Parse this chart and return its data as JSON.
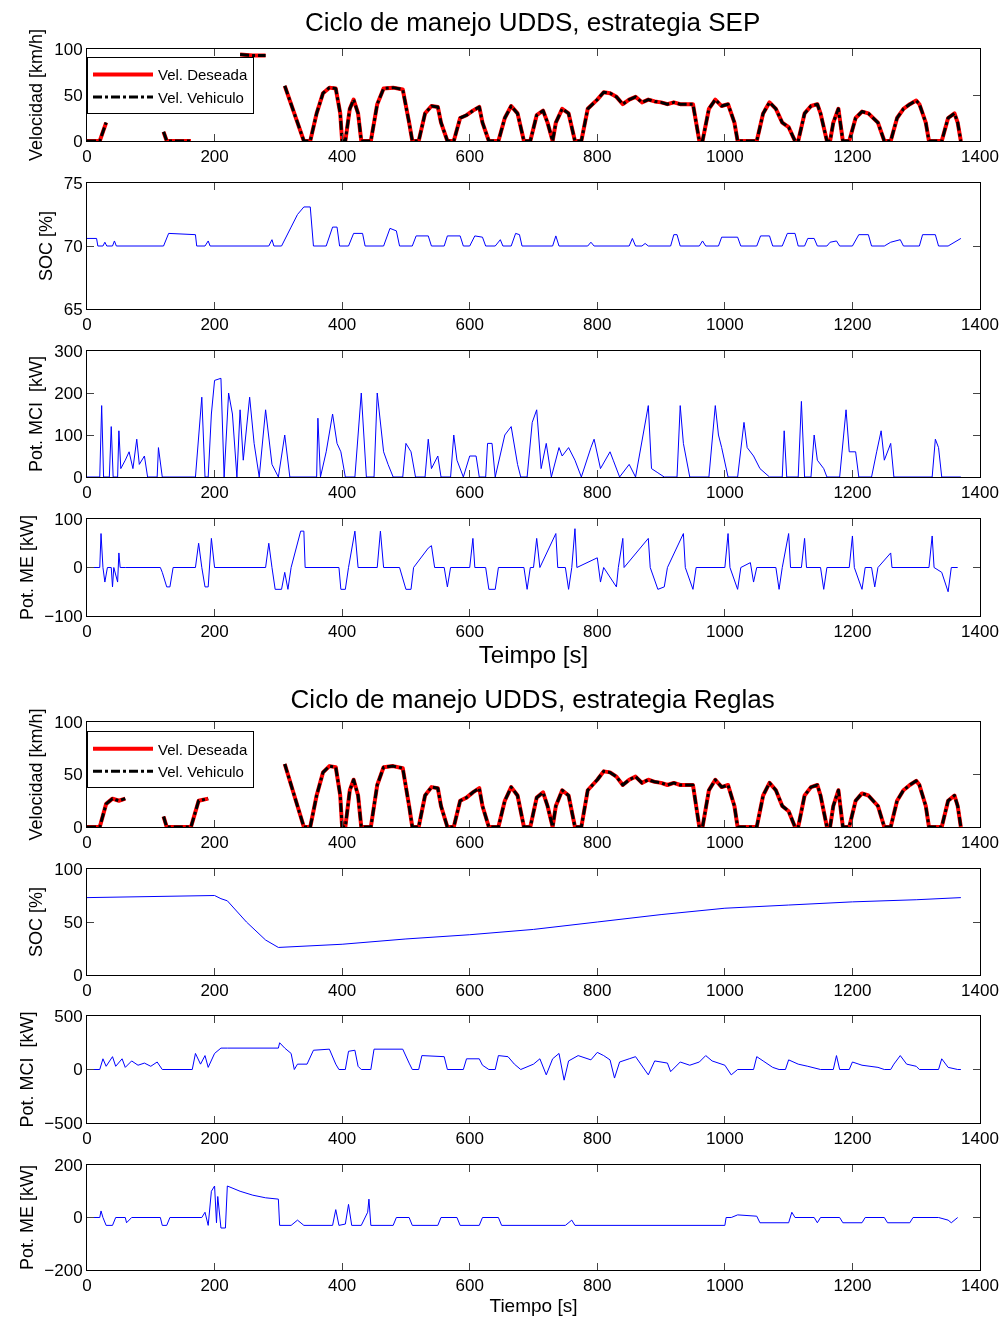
{
  "chart_data": [
    {
      "type": "line",
      "title": "Ciclo de manejo UDDS, estrategia SEP",
      "ylabel": "Velocidad [km/h]",
      "legend": "top left",
      "xlim": [
        0,
        1400
      ],
      "xticks": [
        0,
        200,
        400,
        600,
        800,
        1000,
        1200,
        1400
      ],
      "ylim": [
        0,
        100
      ],
      "yticks": [
        0,
        50,
        100
      ],
      "x": [
        0,
        20,
        30,
        40,
        50,
        60,
        70,
        80,
        90,
        100,
        110,
        120,
        125,
        163,
        175,
        190,
        200,
        210,
        220,
        240,
        260,
        280,
        300,
        310,
        320,
        330,
        340,
        350,
        360,
        370,
        380,
        390,
        397,
        400,
        405,
        412,
        418,
        425,
        430,
        445,
        455,
        465,
        480,
        495,
        505,
        510,
        520,
        530,
        540,
        550,
        555,
        565,
        575,
        585,
        595,
        605,
        615,
        620,
        630,
        645,
        655,
        665,
        675,
        685,
        695,
        705,
        715,
        722,
        730,
        735,
        745,
        755,
        765,
        775,
        785,
        800,
        810,
        820,
        830,
        840,
        850,
        860,
        870,
        880,
        890,
        900,
        910,
        920,
        930,
        950,
        960,
        965,
        975,
        985,
        995,
        1005,
        1015,
        1020,
        1050,
        1060,
        1070,
        1080,
        1090,
        1100,
        1110,
        1115,
        1125,
        1135,
        1145,
        1150,
        1160,
        1165,
        1170,
        1178,
        1185,
        1195,
        1205,
        1215,
        1225,
        1240,
        1250,
        1260,
        1270,
        1280,
        1290,
        1300,
        1305,
        1315,
        1320,
        1340,
        1350,
        1360,
        1365,
        1370
      ],
      "series": [
        {
          "name": "Vel. Deseada",
          "color": "#ff0000",
          "line_style": "solid",
          "values": [
            0,
            0,
            20,
            null,
            null,
            null,
            null,
            null,
            null,
            null,
            null,
            10,
            0,
            0,
            null,
            null,
            null,
            null,
            null,
            94,
            93,
            93,
            null,
            60,
            40,
            20,
            0,
            0,
            30,
            52,
            58,
            57,
            30,
            0,
            0,
            35,
            45,
            30,
            0,
            0,
            40,
            57,
            58,
            56,
            20,
            0,
            0,
            30,
            38,
            37,
            20,
            0,
            0,
            25,
            28,
            33,
            37,
            20,
            0,
            0,
            25,
            38,
            30,
            0,
            0,
            28,
            33,
            20,
            0,
            20,
            35,
            30,
            0,
            0,
            35,
            45,
            53,
            52,
            48,
            40,
            45,
            48,
            42,
            45,
            43,
            42,
            40,
            42,
            40,
            40,
            0,
            0,
            35,
            45,
            38,
            40,
            20,
            0,
            0,
            30,
            42,
            35,
            20,
            15,
            0,
            0,
            30,
            38,
            40,
            30,
            0,
            0,
            20,
            35,
            0,
            0,
            25,
            32,
            30,
            20,
            0,
            0,
            25,
            35,
            40,
            44,
            40,
            20,
            0,
            0,
            25,
            30,
            20,
            0
          ]
        },
        {
          "name": "Vel. Vehiculo",
          "color": "#000000",
          "line_style": "dashed",
          "values": [
            0,
            0,
            20,
            null,
            null,
            null,
            null,
            null,
            null,
            null,
            null,
            10,
            0,
            0,
            null,
            null,
            null,
            null,
            null,
            94,
            93,
            93,
            null,
            60,
            40,
            20,
            0,
            0,
            30,
            52,
            58,
            57,
            30,
            0,
            0,
            35,
            45,
            30,
            0,
            0,
            40,
            57,
            58,
            56,
            20,
            0,
            0,
            30,
            38,
            37,
            20,
            0,
            0,
            25,
            28,
            33,
            37,
            20,
            0,
            0,
            25,
            38,
            30,
            0,
            0,
            28,
            33,
            20,
            0,
            20,
            35,
            30,
            0,
            0,
            35,
            45,
            53,
            52,
            48,
            40,
            45,
            48,
            42,
            45,
            43,
            42,
            40,
            42,
            40,
            40,
            0,
            0,
            35,
            45,
            38,
            40,
            20,
            0,
            0,
            30,
            42,
            35,
            20,
            15,
            0,
            0,
            30,
            38,
            40,
            30,
            0,
            0,
            20,
            35,
            0,
            0,
            25,
            32,
            30,
            20,
            0,
            0,
            25,
            35,
            40,
            44,
            40,
            20,
            0,
            0,
            25,
            30,
            20,
            0
          ]
        }
      ]
    },
    {
      "type": "line",
      "ylabel": "SOC [%]",
      "xlim": [
        0,
        1400
      ],
      "xticks": [
        0,
        200,
        400,
        600,
        800,
        1000,
        1200,
        1400
      ],
      "ylim": [
        65,
        75
      ],
      "yticks": [
        65,
        70,
        75
      ],
      "x": [
        0,
        15,
        17,
        25,
        28,
        31,
        40,
        43,
        46,
        120,
        128,
        170,
        172,
        185,
        190,
        193,
        285,
        290,
        293,
        305,
        320,
        330,
        340,
        350,
        355,
        375,
        385,
        392,
        396,
        410,
        418,
        432,
        436,
        465,
        475,
        485,
        490,
        510,
        516,
        535,
        540,
        560,
        565,
        585,
        590,
        600,
        608,
        620,
        625,
        640,
        648,
        652,
        665,
        672,
        678,
        682,
        730,
        735,
        740,
        785,
        790,
        795,
        850,
        855,
        860,
        870,
        875,
        880,
        915,
        920,
        925,
        930,
        960,
        965,
        970,
        990,
        995,
        1020,
        1025,
        1050,
        1056,
        1070,
        1075,
        1090,
        1098,
        1110,
        1115,
        1125,
        1130,
        1140,
        1145,
        1160,
        1165,
        1175,
        1180,
        1200,
        1210,
        1225,
        1230,
        1250,
        1260,
        1275,
        1280,
        1305,
        1310,
        1330,
        1335,
        1350,
        1370
      ],
      "series": [
        {
          "color": "#0000ff",
          "line_style": "solid",
          "values": [
            70.6,
            70.6,
            70,
            70,
            70.3,
            70,
            70,
            70.4,
            70,
            70,
            71,
            70.9,
            70,
            70,
            70.4,
            70,
            70,
            70.5,
            70,
            70,
            71.5,
            72.5,
            73.1,
            73.1,
            70,
            70,
            71.5,
            71.5,
            70,
            70,
            71,
            71,
            70,
            70,
            71.4,
            71.2,
            70,
            70,
            70.8,
            70.8,
            70,
            70,
            70.8,
            70.8,
            70,
            70,
            70.8,
            70.7,
            70,
            70,
            70.5,
            70,
            70,
            71,
            70.9,
            70,
            70,
            70.8,
            70,
            70,
            70.3,
            70,
            70,
            70.6,
            70,
            70,
            70.2,
            70,
            70,
            70.9,
            70.9,
            70,
            70,
            70.4,
            70,
            70,
            70.7,
            70.7,
            70,
            70,
            70.8,
            70.8,
            70,
            70,
            71,
            71,
            70,
            70,
            70.6,
            70.6,
            70,
            70,
            70.3,
            70.4,
            70,
            70,
            70.9,
            70.9,
            70,
            70,
            70.3,
            70.5,
            70,
            70,
            70.9,
            70.9,
            70,
            70,
            70.6
          ]
        }
      ]
    },
    {
      "type": "line",
      "ylabel": "Pot. MCI  [kW]",
      "xlim": [
        0,
        1400
      ],
      "xticks": [
        0,
        200,
        400,
        600,
        800,
        1000,
        1200,
        1400
      ],
      "ylim": [
        0,
        300
      ],
      "yticks": [
        0,
        100,
        200,
        300
      ],
      "x": [
        0,
        20,
        23,
        26,
        35,
        38,
        41,
        48,
        50,
        53,
        60,
        66,
        72,
        78,
        82,
        90,
        95,
        110,
        112,
        118,
        130,
        170,
        180,
        185,
        190,
        195,
        200,
        210,
        215,
        222,
        228,
        235,
        240,
        245,
        255,
        262,
        270,
        280,
        290,
        300,
        310,
        318,
        360,
        362,
        366,
        375,
        385,
        392,
        398,
        405,
        420,
        430,
        438,
        450,
        455,
        465,
        472,
        480,
        495,
        500,
        508,
        515,
        530,
        535,
        540,
        550,
        555,
        570,
        575,
        580,
        590,
        600,
        610,
        615,
        625,
        628,
        635,
        640,
        655,
        665,
        675,
        680,
        690,
        698,
        705,
        712,
        720,
        728,
        740,
        745,
        755,
        765,
        775,
        790,
        795,
        805,
        820,
        825,
        835,
        850,
        860,
        880,
        885,
        895,
        905,
        925,
        930,
        935,
        945,
        975,
        985,
        990,
        995,
        1005,
        1020,
        1030,
        1035,
        1045,
        1055,
        1070,
        1090,
        1093,
        1097,
        1115,
        1120,
        1125,
        1135,
        1140,
        1145,
        1155,
        1160,
        1180,
        1190,
        1195,
        1205,
        1210,
        1230,
        1238,
        1245,
        1250,
        1260,
        1265,
        1325,
        1330,
        1335,
        1340,
        1370
      ],
      "series": [
        {
          "color": "#0000ff",
          "line_style": "solid",
          "values": [
            0,
            0,
            170,
            0,
            0,
            120,
            0,
            0,
            110,
            20,
            40,
            60,
            20,
            90,
            30,
            50,
            0,
            0,
            70,
            0,
            0,
            0,
            190,
            0,
            0,
            150,
            230,
            235,
            0,
            200,
            150,
            0,
            160,
            40,
            190,
            80,
            0,
            160,
            30,
            0,
            100,
            0,
            0,
            140,
            0,
            60,
            150,
            80,
            60,
            0,
            0,
            200,
            0,
            0,
            200,
            60,
            30,
            0,
            0,
            80,
            60,
            0,
            0,
            90,
            20,
            50,
            0,
            0,
            100,
            40,
            0,
            50,
            50,
            0,
            0,
            80,
            80,
            0,
            100,
            120,
            30,
            0,
            0,
            130,
            160,
            20,
            80,
            0,
            70,
            50,
            70,
            40,
            0,
            70,
            90,
            20,
            60,
            40,
            0,
            30,
            0,
            170,
            20,
            10,
            0,
            0,
            170,
            80,
            0,
            0,
            170,
            100,
            70,
            0,
            0,
            130,
            70,
            50,
            20,
            0,
            0,
            110,
            0,
            0,
            180,
            0,
            0,
            100,
            40,
            20,
            0,
            0,
            160,
            60,
            60,
            0,
            0,
            60,
            110,
            40,
            80,
            0,
            0,
            90,
            70,
            0,
            0
          ]
        }
      ]
    },
    {
      "type": "line",
      "xlabel": "Teimpo [s]",
      "ylabel": "Pot. ME [kW]",
      "xlim": [
        0,
        1400
      ],
      "xticks": [
        0,
        200,
        400,
        600,
        800,
        1000,
        1200,
        1400
      ],
      "ylim": [
        -100,
        100
      ],
      "yticks": [
        -100,
        0,
        100
      ],
      "x": [
        0,
        20,
        22,
        25,
        28,
        32,
        38,
        40,
        42,
        48,
        50,
        52,
        60,
        115,
        118,
        125,
        130,
        135,
        170,
        175,
        180,
        185,
        190,
        195,
        200,
        280,
        285,
        290,
        295,
        305,
        310,
        315,
        320,
        335,
        340,
        342,
        395,
        398,
        405,
        410,
        420,
        425,
        455,
        460,
        465,
        490,
        500,
        508,
        512,
        535,
        540,
        545,
        560,
        565,
        570,
        600,
        605,
        608,
        625,
        630,
        640,
        645,
        685,
        690,
        695,
        700,
        705,
        710,
        735,
        738,
        750,
        755,
        760,
        765,
        768,
        800,
        805,
        810,
        830,
        833,
        840,
        842,
        880,
        883,
        895,
        905,
        910,
        935,
        938,
        950,
        955,
        1000,
        1005,
        1008,
        1020,
        1025,
        1040,
        1045,
        1050,
        1080,
        1085,
        1090,
        1100,
        1103,
        1120,
        1125,
        1128,
        1150,
        1155,
        1160,
        1195,
        1200,
        1203,
        1215,
        1220,
        1230,
        1235,
        1240,
        1260,
        1262,
        1320,
        1325,
        1328,
        1340,
        1350,
        1355,
        1365
      ],
      "series": [
        {
          "color": "#0000ff",
          "line_style": "solid",
          "values": [
            0,
            0,
            70,
            0,
            -30,
            0,
            0,
            -40,
            0,
            -30,
            30,
            0,
            0,
            0,
            -10,
            -40,
            -40,
            0,
            0,
            50,
            0,
            -40,
            -40,
            60,
            0,
            0,
            50,
            0,
            -45,
            -45,
            -10,
            -45,
            0,
            75,
            75,
            0,
            0,
            -45,
            -45,
            0,
            75,
            0,
            0,
            75,
            0,
            0,
            -45,
            -45,
            0,
            40,
            45,
            0,
            0,
            -40,
            0,
            0,
            60,
            0,
            0,
            -45,
            -45,
            0,
            0,
            -45,
            0,
            0,
            60,
            0,
            70,
            0,
            0,
            -45,
            0,
            80,
            0,
            20,
            -30,
            0,
            -40,
            0,
            60,
            0,
            60,
            0,
            -45,
            -40,
            0,
            70,
            0,
            -45,
            0,
            0,
            70,
            0,
            -45,
            0,
            10,
            -30,
            0,
            0,
            -45,
            0,
            70,
            0,
            0,
            60,
            0,
            0,
            -45,
            0,
            0,
            65,
            0,
            -45,
            0,
            0,
            -40,
            0,
            30,
            0,
            0,
            65,
            0,
            -10,
            -50,
            0,
            0
          ]
        }
      ]
    },
    {
      "type": "line",
      "title": "Ciclo de manejo UDDS, estrategia Reglas",
      "ylabel": "Velocidad [km/h]",
      "legend": "top left",
      "xlim": [
        0,
        1400
      ],
      "xticks": [
        0,
        200,
        400,
        600,
        800,
        1000,
        1200,
        1400
      ],
      "ylim": [
        0,
        100
      ],
      "yticks": [
        0,
        50,
        100
      ],
      "x": [
        0,
        20,
        30,
        40,
        50,
        60,
        70,
        80,
        90,
        100,
        110,
        120,
        125,
        163,
        175,
        190,
        200,
        210,
        220,
        240,
        260,
        280,
        300,
        310,
        320,
        330,
        340,
        350,
        360,
        370,
        380,
        390,
        397,
        400,
        405,
        412,
        418,
        425,
        430,
        445,
        455,
        465,
        480,
        495,
        505,
        510,
        520,
        530,
        540,
        550,
        555,
        565,
        575,
        585,
        595,
        605,
        615,
        620,
        630,
        645,
        655,
        665,
        675,
        685,
        695,
        705,
        715,
        722,
        730,
        735,
        745,
        755,
        765,
        775,
        785,
        800,
        810,
        820,
        830,
        840,
        850,
        860,
        870,
        880,
        890,
        900,
        910,
        920,
        930,
        950,
        960,
        965,
        975,
        985,
        995,
        1005,
        1015,
        1020,
        1050,
        1060,
        1070,
        1080,
        1090,
        1100,
        1110,
        1115,
        1125,
        1135,
        1145,
        1150,
        1160,
        1165,
        1170,
        1178,
        1185,
        1195,
        1205,
        1215,
        1225,
        1240,
        1250,
        1260,
        1270,
        1280,
        1290,
        1300,
        1305,
        1315,
        1320,
        1340,
        1350,
        1360,
        1365,
        1370
      ],
      "series": [
        {
          "name": "Vel. Deseada",
          "color": "#ff0000",
          "line_style": "solid",
          "values": [
            0,
            0,
            22,
            27,
            25,
            27,
            null,
            null,
            null,
            null,
            null,
            10,
            0,
            0,
            25,
            27,
            null,
            null,
            null,
            null,
            null,
            null,
            null,
            60,
            40,
            20,
            0,
            0,
            30,
            52,
            58,
            57,
            30,
            0,
            0,
            35,
            45,
            30,
            0,
            0,
            40,
            57,
            58,
            56,
            20,
            0,
            0,
            30,
            38,
            37,
            20,
            0,
            0,
            25,
            28,
            33,
            37,
            20,
            0,
            0,
            25,
            38,
            30,
            0,
            0,
            28,
            33,
            20,
            0,
            20,
            35,
            30,
            0,
            0,
            35,
            45,
            53,
            52,
            48,
            40,
            45,
            48,
            42,
            45,
            43,
            42,
            40,
            42,
            40,
            40,
            0,
            0,
            35,
            45,
            38,
            40,
            20,
            0,
            0,
            30,
            42,
            35,
            20,
            15,
            0,
            0,
            30,
            38,
            40,
            30,
            0,
            0,
            20,
            35,
            0,
            0,
            25,
            32,
            30,
            20,
            0,
            0,
            25,
            35,
            40,
            44,
            40,
            20,
            0,
            0,
            25,
            30,
            20,
            0
          ]
        },
        {
          "name": "Vel. Vehiculo",
          "color": "#000000",
          "line_style": "dashed",
          "values": [
            0,
            0,
            22,
            27,
            25,
            27,
            null,
            null,
            null,
            null,
            null,
            10,
            0,
            0,
            25,
            27,
            null,
            null,
            null,
            null,
            null,
            null,
            null,
            60,
            40,
            20,
            0,
            0,
            30,
            52,
            58,
            57,
            30,
            0,
            0,
            35,
            45,
            30,
            0,
            0,
            40,
            57,
            58,
            56,
            20,
            0,
            0,
            30,
            38,
            37,
            20,
            0,
            0,
            25,
            28,
            33,
            37,
            20,
            0,
            0,
            25,
            38,
            30,
            0,
            0,
            28,
            33,
            20,
            0,
            20,
            35,
            30,
            0,
            0,
            35,
            45,
            53,
            52,
            48,
            40,
            45,
            48,
            42,
            45,
            43,
            42,
            40,
            42,
            40,
            40,
            0,
            0,
            35,
            45,
            38,
            40,
            20,
            0,
            0,
            30,
            42,
            35,
            20,
            15,
            0,
            0,
            30,
            38,
            40,
            30,
            0,
            0,
            20,
            35,
            0,
            0,
            25,
            32,
            30,
            20,
            0,
            0,
            25,
            35,
            40,
            44,
            40,
            20,
            0,
            0,
            25,
            30,
            20,
            0
          ]
        }
      ]
    },
    {
      "type": "line",
      "ylabel": "SOC [%]",
      "xlim": [
        0,
        1400
      ],
      "xticks": [
        0,
        200,
        400,
        600,
        800,
        1000,
        1200,
        1400
      ],
      "ylim": [
        0,
        100
      ],
      "yticks": [
        0,
        50,
        100
      ],
      "x": [
        0,
        200,
        210,
        220,
        250,
        280,
        300,
        400,
        500,
        600,
        700,
        800,
        900,
        1000,
        1100,
        1200,
        1300,
        1370
      ],
      "series": [
        {
          "color": "#0000ff",
          "line_style": "solid",
          "values": [
            73,
            75,
            72,
            70,
            50,
            33,
            26,
            29,
            34,
            38,
            43,
            50,
            57,
            63,
            66,
            69,
            71,
            73
          ]
        }
      ]
    },
    {
      "type": "line",
      "ylabel": "Pot. MCI  [kW]",
      "xlim": [
        0,
        1400
      ],
      "xticks": [
        0,
        200,
        400,
        600,
        800,
        1000,
        1200,
        1400
      ],
      "ylim": [
        -500,
        500
      ],
      "yticks": [
        -500,
        0,
        500
      ],
      "x": [
        0,
        20,
        25,
        30,
        40,
        45,
        55,
        60,
        70,
        80,
        90,
        100,
        110,
        118,
        165,
        170,
        178,
        185,
        190,
        200,
        210,
        220,
        300,
        302,
        310,
        320,
        325,
        330,
        345,
        355,
        380,
        390,
        395,
        405,
        410,
        420,
        425,
        430,
        445,
        450,
        495,
        505,
        510,
        520,
        525,
        560,
        565,
        590,
        595,
        615,
        620,
        630,
        640,
        645,
        660,
        670,
        680,
        700,
        710,
        720,
        730,
        740,
        748,
        755,
        770,
        790,
        800,
        810,
        820,
        827,
        835,
        850,
        860,
        880,
        890,
        910,
        915,
        930,
        945,
        960,
        970,
        980,
        1000,
        1010,
        1020,
        1045,
        1050,
        1060,
        1075,
        1085,
        1095,
        1100,
        1115,
        1130,
        1150,
        1170,
        1175,
        1180,
        1195,
        1200,
        1215,
        1240,
        1250,
        1260,
        1265,
        1275,
        1285,
        1300,
        1305,
        1335,
        1340,
        1350,
        1365,
        1370
      ],
      "series": [
        {
          "color": "#0000ff",
          "line_style": "solid",
          "values": [
            0,
            0,
            100,
            30,
            120,
            30,
            100,
            20,
            80,
            40,
            60,
            30,
            70,
            0,
            0,
            150,
            50,
            130,
            20,
            150,
            200,
            200,
            200,
            250,
            200,
            150,
            0,
            50,
            50,
            180,
            190,
            50,
            0,
            0,
            170,
            180,
            30,
            0,
            0,
            190,
            190,
            60,
            0,
            0,
            130,
            120,
            0,
            0,
            100,
            100,
            40,
            0,
            0,
            130,
            120,
            50,
            0,
            50,
            100,
            -50,
            100,
            150,
            -100,
            80,
            130,
            90,
            160,
            130,
            90,
            -80,
            70,
            100,
            120,
            -50,
            80,
            60,
            -20,
            70,
            40,
            70,
            130,
            80,
            40,
            -50,
            0,
            0,
            120,
            80,
            20,
            0,
            0,
            90,
            50,
            30,
            0,
            0,
            130,
            0,
            0,
            70,
            40,
            20,
            0,
            0,
            50,
            130,
            50,
            30,
            0,
            0,
            100,
            20,
            0,
            0
          ]
        }
      ]
    },
    {
      "type": "line",
      "xlabel": "Tiempo [s]",
      "ylabel": "Pot. ME [kW]",
      "xlim": [
        0,
        1400
      ],
      "xticks": [
        0,
        200,
        400,
        600,
        800,
        1000,
        1200,
        1400
      ],
      "ylim": [
        -200,
        200
      ],
      "yticks": [
        -200,
        0,
        200
      ],
      "x": [
        0,
        20,
        22,
        25,
        30,
        40,
        45,
        60,
        62,
        70,
        115,
        118,
        125,
        130,
        180,
        185,
        190,
        195,
        200,
        203,
        205,
        210,
        217,
        220,
        240,
        260,
        280,
        300,
        302,
        320,
        330,
        340,
        385,
        390,
        395,
        405,
        410,
        415,
        430,
        440,
        442,
        445,
        480,
        485,
        505,
        510,
        550,
        555,
        580,
        585,
        615,
        620,
        645,
        650,
        750,
        760,
        765,
        1000,
        1002,
        1010,
        1020,
        1050,
        1055,
        1100,
        1105,
        1110,
        1140,
        1145,
        1150,
        1180,
        1185,
        1215,
        1220,
        1250,
        1255,
        1290,
        1295,
        1335,
        1350,
        1355,
        1365
      ],
      "series": [
        {
          "color": "#0000ff",
          "line_style": "solid",
          "values": [
            0,
            0,
            25,
            0,
            -30,
            -30,
            0,
            0,
            -20,
            0,
            0,
            -30,
            -30,
            0,
            0,
            20,
            -30,
            100,
            120,
            -20,
            80,
            -40,
            -40,
            120,
            100,
            85,
            75,
            70,
            -30,
            -30,
            -10,
            -30,
            -30,
            30,
            -30,
            -25,
            50,
            -30,
            -30,
            20,
            70,
            -30,
            -30,
            0,
            0,
            -30,
            -30,
            0,
            0,
            -30,
            -30,
            0,
            0,
            -30,
            -30,
            -10,
            -30,
            -30,
            0,
            0,
            10,
            5,
            -20,
            -20,
            20,
            0,
            0,
            -20,
            0,
            0,
            -20,
            -20,
            0,
            0,
            -20,
            -20,
            0,
            0,
            -10,
            -20,
            0
          ]
        }
      ]
    }
  ]
}
